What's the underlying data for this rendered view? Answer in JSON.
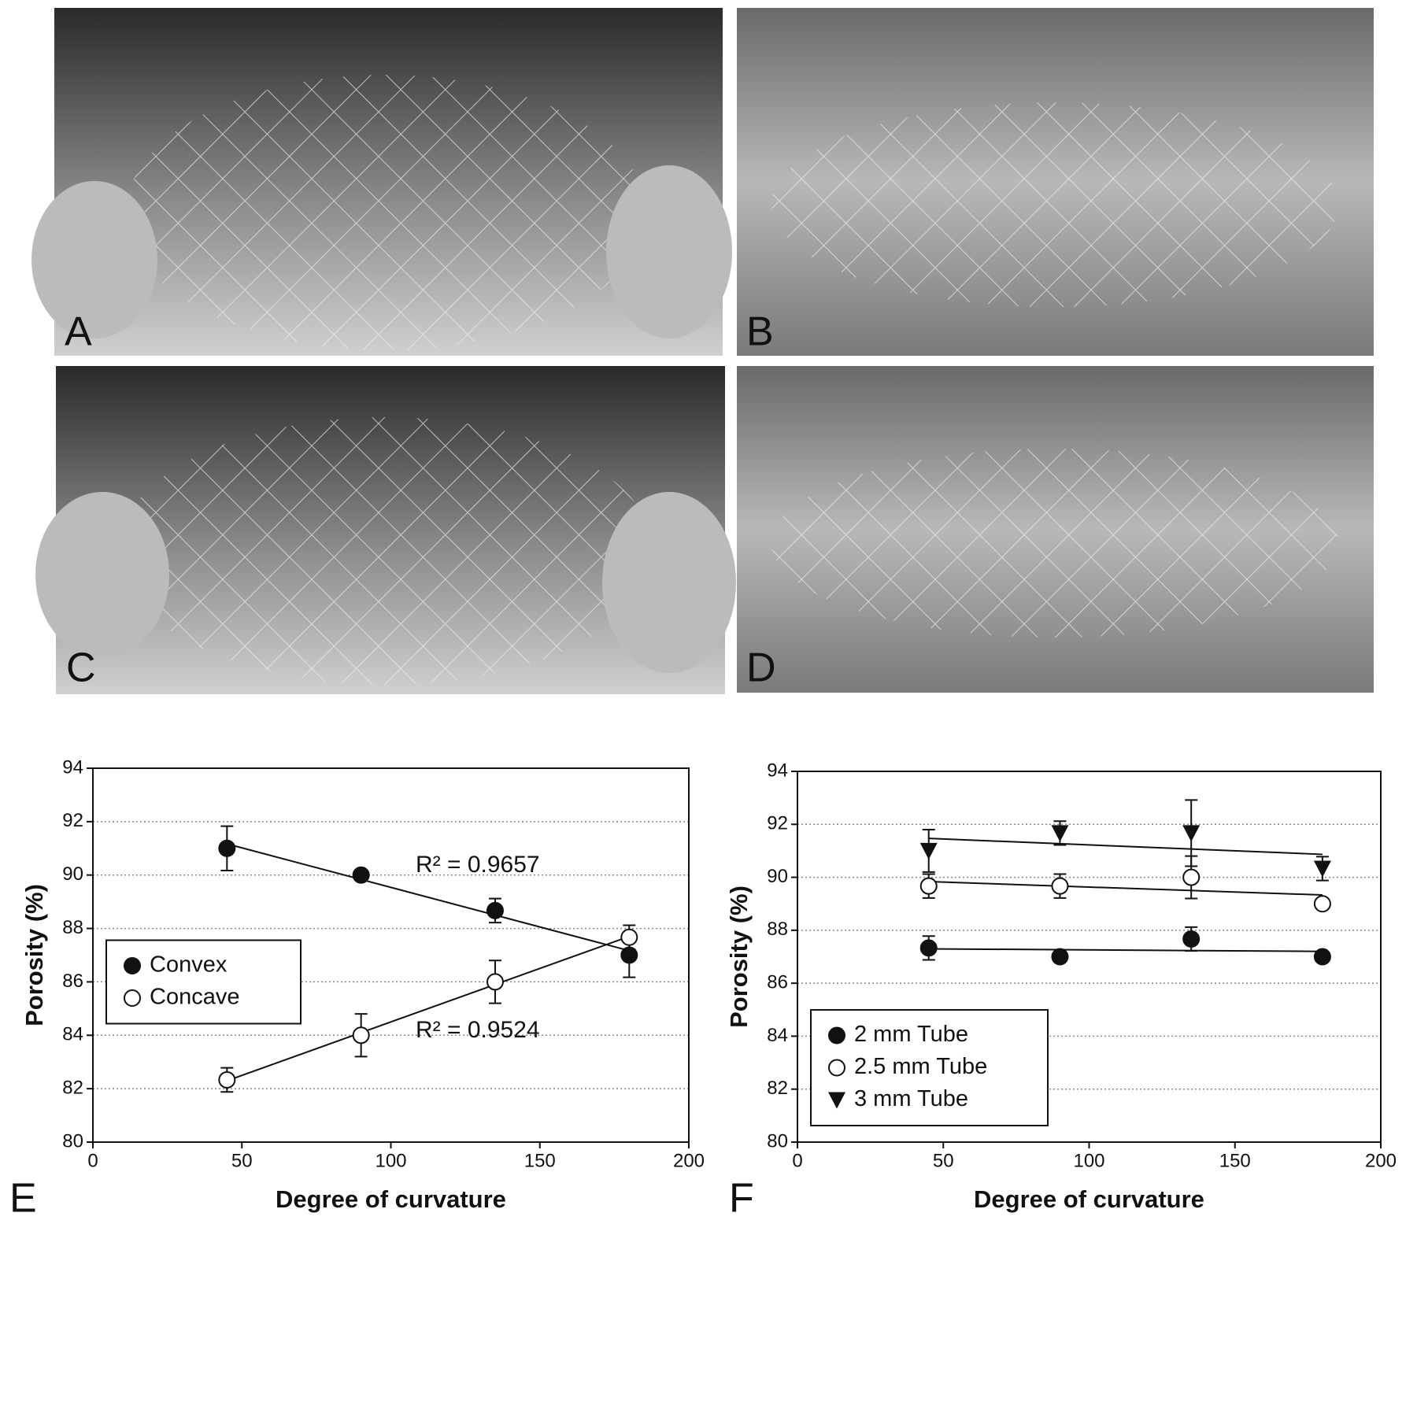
{
  "photo_panels": [
    "A",
    "B",
    "C",
    "D"
  ],
  "chart_data": [
    {
      "type": "scatter",
      "panel_label": "E",
      "x_label": "Degree of curvature",
      "y_label": "Porosity (%)",
      "x": [
        45,
        90,
        135,
        180
      ],
      "series": [
        {
          "name": "Convex",
          "color": "#111111",
          "marker": "filled-circle",
          "values": [
            91,
            90,
            88.67,
            87
          ],
          "errors": [
            0.83,
            0,
            0.45,
            0.83
          ]
        },
        {
          "name": "Concave",
          "color": "#111111",
          "marker": "open-circle",
          "values": [
            82.33,
            84,
            86,
            87.67
          ],
          "errors": [
            0.45,
            0.8,
            0.8,
            0.45
          ]
        }
      ],
      "annotations": [
        "R² = 0.9657",
        "R² = 0.9524"
      ],
      "trendline": true,
      "grid": true,
      "legend": "center-left",
      "xlim": [
        0,
        200
      ],
      "xticks": [
        0,
        50,
        100,
        150,
        200
      ],
      "ylim": [
        80,
        94
      ],
      "yticks": [
        80,
        82,
        84,
        86,
        88,
        90,
        92,
        94
      ]
    },
    {
      "type": "scatter",
      "panel_label": "F",
      "x_label": "Degree of curvature",
      "y_label": "Porosity (%)",
      "x": [
        45,
        90,
        135,
        180
      ],
      "series": [
        {
          "name": "2 mm Tube",
          "color": "#111111",
          "marker": "filled-circle",
          "values": [
            87.33,
            87,
            87.67,
            87
          ],
          "errors": [
            0.45,
            0,
            0.45,
            0
          ]
        },
        {
          "name": "2.5 mm Tube",
          "color": "#111111",
          "marker": "open-circle",
          "values": [
            89.67,
            89.67,
            90,
            89
          ],
          "errors": [
            0.45,
            0.45,
            0.8,
            0
          ]
        },
        {
          "name": "3 mm Tube",
          "color": "#111111",
          "marker": "triangle-down",
          "values": [
            91,
            91.67,
            91.67,
            90.33
          ],
          "errors": [
            0.8,
            0.45,
            1.25,
            0.45
          ]
        }
      ],
      "trendline": true,
      "grid": true,
      "legend": "lower-left",
      "xlim": [
        0,
        200
      ],
      "xticks": [
        0,
        50,
        100,
        150,
        200
      ],
      "ylim": [
        80,
        94
      ],
      "yticks": [
        80,
        82,
        84,
        86,
        88,
        90,
        92,
        94
      ]
    }
  ]
}
